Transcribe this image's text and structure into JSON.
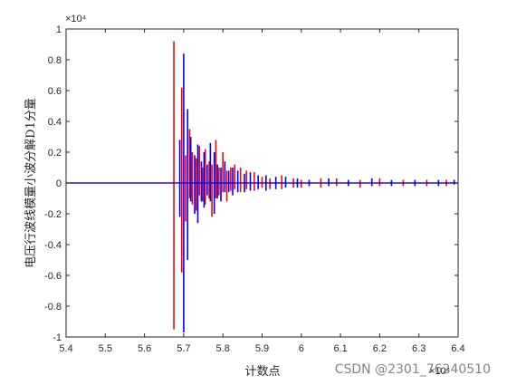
{
  "chart_data": {
    "type": "line",
    "title": "",
    "xlabel": "计数点",
    "ylabel": "电压行波线模量小波分解D1分量",
    "x_exponent": "×10⁴",
    "y_exponent": "×10⁴",
    "xlim": [
      5.4,
      6.4
    ],
    "ylim": [
      -1,
      1
    ],
    "x_ticks": [
      "5.4",
      "5.5",
      "5.6",
      "5.7",
      "5.8",
      "5.9",
      "6",
      "6.1",
      "6.2",
      "6.3",
      "6.4"
    ],
    "y_ticks": [
      "1",
      "0.8",
      "0.6",
      "0.4",
      "0.2",
      "0",
      "-0.2",
      "-0.4",
      "-0.6",
      "-0.8",
      "-1"
    ],
    "grid": false,
    "series": [
      {
        "color": "#ff0000",
        "spikes": [
          [
            5.675,
            0.92,
            -0.95
          ],
          [
            5.695,
            0.62,
            -0.58
          ],
          [
            5.705,
            0.18,
            -0.25
          ],
          [
            5.715,
            0.35,
            -0.1
          ],
          [
            5.722,
            0.2,
            -0.14
          ],
          [
            5.732,
            0.16,
            -0.18
          ],
          [
            5.74,
            0.24,
            -0.08
          ],
          [
            5.748,
            0.1,
            -0.12
          ],
          [
            5.755,
            0.22,
            -0.14
          ],
          [
            5.765,
            0.14,
            -0.1
          ],
          [
            5.772,
            0.12,
            -0.22
          ],
          [
            5.782,
            0.28,
            -0.1
          ],
          [
            5.79,
            0.1,
            -0.08
          ],
          [
            5.8,
            0.2,
            -0.06
          ],
          [
            5.81,
            0.08,
            -0.12
          ],
          [
            5.82,
            0.1,
            -0.05
          ],
          [
            5.83,
            0.12,
            -0.04
          ],
          [
            5.845,
            0.1,
            -0.06
          ],
          [
            5.86,
            0.08,
            -0.04
          ],
          [
            5.88,
            0.07,
            -0.05
          ],
          [
            5.9,
            0.04,
            -0.03
          ],
          [
            5.92,
            0.03,
            -0.04
          ],
          [
            5.95,
            0.05,
            -0.04
          ],
          [
            5.98,
            0.03,
            -0.03
          ],
          [
            6.0,
            0.02,
            -0.03
          ],
          [
            6.05,
            0.03,
            -0.03
          ],
          [
            6.09,
            0.03,
            -0.02
          ],
          [
            6.15,
            0.02,
            -0.03
          ],
          [
            6.2,
            0.03,
            -0.02
          ],
          [
            6.26,
            0.02,
            -0.02
          ],
          [
            6.32,
            0.02,
            -0.02
          ],
          [
            6.37,
            0.02,
            -0.02
          ]
        ]
      },
      {
        "color": "#0000ff",
        "spikes": [
          [
            5.7,
            0.84,
            -0.97
          ],
          [
            5.69,
            0.28,
            -0.22
          ],
          [
            5.71,
            0.48,
            -0.5
          ],
          [
            5.718,
            0.3,
            -0.12
          ],
          [
            5.728,
            0.18,
            -0.2
          ],
          [
            5.736,
            0.25,
            -0.26
          ],
          [
            5.745,
            0.14,
            -0.12
          ],
          [
            5.752,
            0.2,
            -0.16
          ],
          [
            5.76,
            0.12,
            -0.08
          ],
          [
            5.768,
            0.26,
            -0.12
          ],
          [
            5.778,
            0.2,
            -0.2
          ],
          [
            5.786,
            0.12,
            -0.1
          ],
          [
            5.795,
            0.1,
            -0.12
          ],
          [
            5.805,
            0.14,
            -0.06
          ],
          [
            5.815,
            0.08,
            -0.06
          ],
          [
            5.825,
            0.1,
            -0.08
          ],
          [
            5.838,
            0.08,
            -0.06
          ],
          [
            5.855,
            0.06,
            -0.06
          ],
          [
            5.87,
            0.07,
            -0.05
          ],
          [
            5.89,
            0.05,
            -0.04
          ],
          [
            5.91,
            0.05,
            -0.05
          ],
          [
            5.935,
            0.04,
            -0.04
          ],
          [
            5.96,
            0.04,
            -0.03
          ],
          [
            5.99,
            0.03,
            -0.03
          ],
          [
            6.02,
            0.02,
            -0.02
          ],
          [
            6.07,
            0.03,
            -0.02
          ],
          [
            6.12,
            0.02,
            -0.02
          ],
          [
            6.18,
            0.03,
            -0.02
          ],
          [
            6.23,
            0.02,
            -0.02
          ],
          [
            6.29,
            0.02,
            -0.02
          ],
          [
            6.35,
            0.02,
            -0.02
          ],
          [
            6.39,
            0.02,
            -0.01
          ]
        ]
      }
    ]
  },
  "watermark": "CSDN @2301_76240510"
}
